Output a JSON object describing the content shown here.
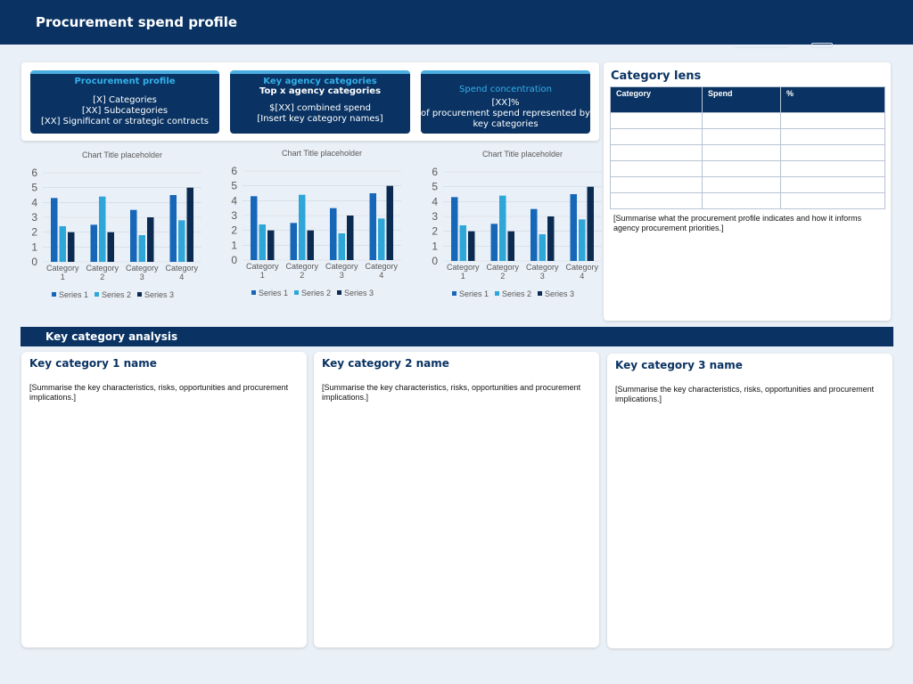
{
  "header": {
    "title": "Procurement spend profile"
  },
  "summary": {
    "profile": {
      "heading": "Procurement profile",
      "lines": [
        "[X] Categories",
        "[XX] Subcategories",
        "[XX] Significant or strategic contracts"
      ]
    },
    "agency": {
      "heading": "Key agency categories",
      "subheading": "Top x agency categories",
      "lines": [
        "$[XX] combined spend",
        "[Insert key category names]"
      ]
    },
    "concentration": {
      "heading": "Spend concentration",
      "lines": [
        "[XX]%",
        "of procurement spend represented by",
        "key categories"
      ]
    }
  },
  "colors": {
    "navy": "#0a3363",
    "accent": "#33b0ea",
    "series1": "#1767b9",
    "series2": "#2ea6d8",
    "series3": "#0b2a52"
  },
  "chart_data": [
    {
      "type": "bar",
      "title": "Chart Title placeholder",
      "categories": [
        "Category 1",
        "Category 2",
        "Category 3",
        "Category 4"
      ],
      "series": [
        {
          "name": "Series 1",
          "values": [
            4.3,
            2.5,
            3.5,
            4.5
          ]
        },
        {
          "name": "Series 2",
          "values": [
            2.4,
            4.4,
            1.8,
            2.8
          ]
        },
        {
          "name": "Series 3",
          "values": [
            2,
            2,
            3,
            5
          ]
        }
      ],
      "ylim": [
        0,
        6
      ],
      "yticks": [
        "0",
        "1",
        "2",
        "3",
        "4",
        "5",
        "6"
      ],
      "grid": true,
      "legend": "bottom"
    },
    {
      "type": "bar",
      "title": "Chart Title placeholder",
      "categories": [
        "Category 1",
        "Category 2",
        "Category 3",
        "Category 4"
      ],
      "series": [
        {
          "name": "Series 1",
          "values": [
            4.3,
            2.5,
            3.5,
            4.5
          ]
        },
        {
          "name": "Series 2",
          "values": [
            2.4,
            4.4,
            1.8,
            2.8
          ]
        },
        {
          "name": "Series 3",
          "values": [
            2,
            2,
            3,
            5
          ]
        }
      ],
      "ylim": [
        0,
        6
      ],
      "yticks": [
        "0",
        "1",
        "2",
        "3",
        "4",
        "5",
        "6"
      ],
      "grid": true,
      "legend": "bottom"
    },
    {
      "type": "bar",
      "title": "Chart Title placeholder",
      "categories": [
        "Category 1",
        "Category 2",
        "Category 3",
        "Category 4"
      ],
      "series": [
        {
          "name": "Series 1",
          "values": [
            4.3,
            2.5,
            3.5,
            4.5
          ]
        },
        {
          "name": "Series 2",
          "values": [
            2.4,
            4.4,
            1.8,
            2.8
          ]
        },
        {
          "name": "Series 3",
          "values": [
            2,
            2,
            3,
            5
          ]
        }
      ],
      "ylim": [
        0,
        6
      ],
      "yticks": [
        "0",
        "1",
        "2",
        "3",
        "4",
        "5",
        "6"
      ],
      "grid": true,
      "legend": "bottom"
    }
  ],
  "lens": {
    "title": "Category lens",
    "columns": [
      "Category",
      "Spend",
      "%"
    ],
    "note": "[Summarise what the procurement profile indicates and how it informs agency procurement priorities.]"
  },
  "analysis": {
    "title": "Key category analysis",
    "categories": [
      {
        "name": "Key category 1 name",
        "summary": "[Summarise the key characteristics, risks, opportunities and procurement implications.]"
      },
      {
        "name": "Key category 2 name",
        "summary": "[Summarise the key characteristics, risks, opportunities and procurement implications.]"
      },
      {
        "name": "Key category 3 name",
        "summary": "[Summarise the key characteristics, risks, opportunities and procurement implications.]"
      }
    ]
  }
}
